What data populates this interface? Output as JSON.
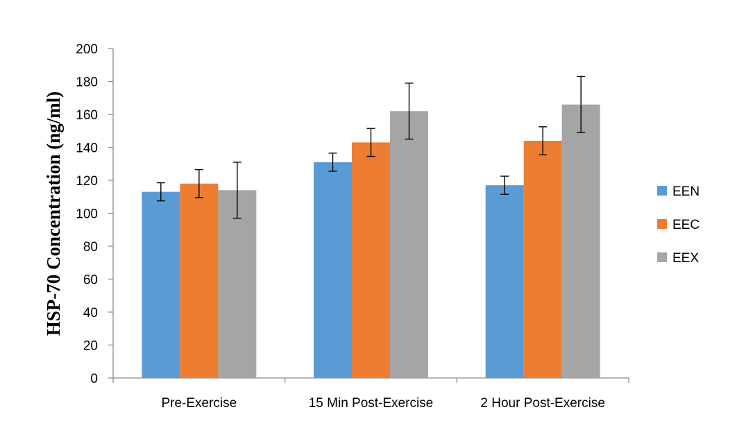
{
  "chart_data": {
    "type": "bar",
    "title": "",
    "xlabel": "",
    "ylabel": "HSP-70  Concentration (ng/ml)",
    "ylim": [
      0,
      200
    ],
    "yticks": [
      0,
      20,
      40,
      60,
      80,
      100,
      120,
      140,
      160,
      180,
      200
    ],
    "grid": false,
    "legend_position": "right",
    "categories": [
      "Pre-Exercise",
      "15 Min Post-Exercise",
      "2 Hour Post-Exercise"
    ],
    "series": [
      {
        "name": "EEN",
        "color": "#5b9bd5",
        "values": [
          113,
          131,
          117
        ],
        "errors": [
          5.5,
          5.5,
          5.5
        ]
      },
      {
        "name": "EEC",
        "color": "#ed7d31",
        "values": [
          118,
          143,
          144
        ],
        "errors": [
          8.5,
          8.5,
          8.5
        ]
      },
      {
        "name": "EEX",
        "color": "#a5a5a5",
        "values": [
          114,
          162,
          166
        ],
        "errors": [
          17,
          17,
          17
        ]
      }
    ]
  }
}
